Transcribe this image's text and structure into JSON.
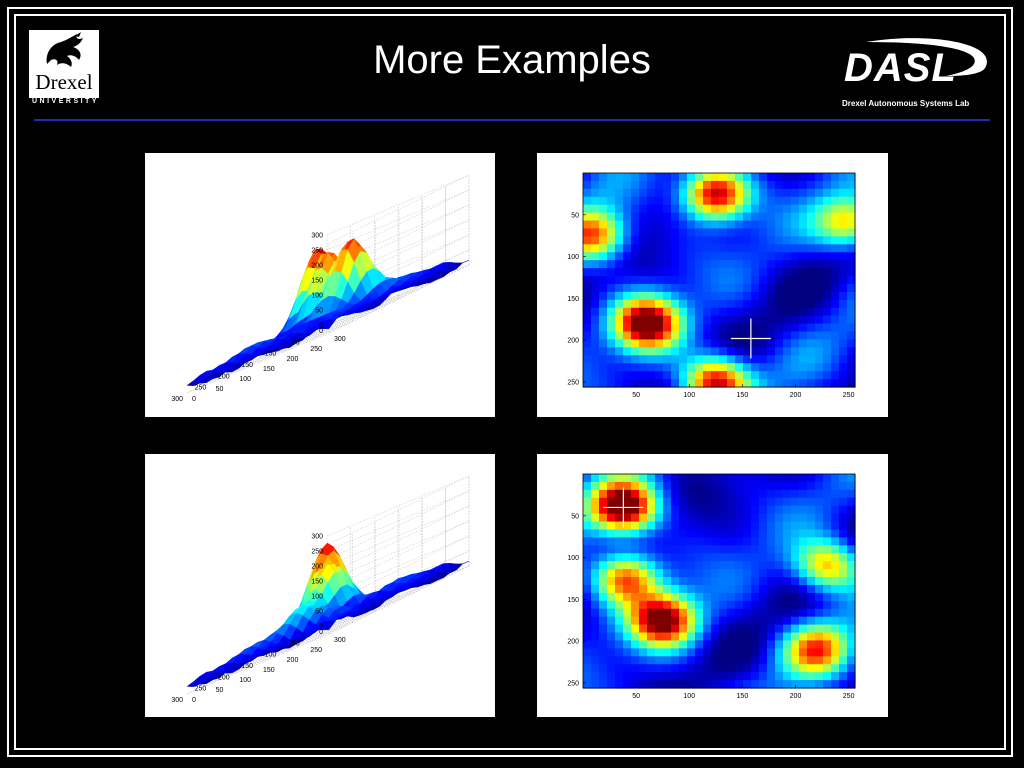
{
  "slide": {
    "title": "More Examples",
    "left_logo": {
      "wordmark": "Drexel",
      "subtitle": "UNIVERSITY",
      "icon": "dragon-icon"
    },
    "right_logo": {
      "wordmark": "DASL",
      "subtitle": "Drexel Autonomous Systems Lab",
      "icon": "orbit-swoosh-icon"
    },
    "rule_color": "#1a2db8"
  },
  "colormap": "jet",
  "chart_data": [
    {
      "type": "surface",
      "position_label": "top-left",
      "z_ticks": [
        "0",
        "50",
        "100",
        "150",
        "200",
        "250",
        "300"
      ],
      "x_ticks": [
        "0",
        "50",
        "100",
        "150",
        "200",
        "250",
        "300"
      ],
      "y_ticks": [
        "0",
        "50",
        "100",
        "150",
        "200",
        "250",
        "300"
      ],
      "zlim": [
        0,
        300
      ],
      "grid": true,
      "peaks": [
        {
          "x": 60,
          "y": 40,
          "z": 290
        },
        {
          "x": 150,
          "y": 200,
          "z": 260
        },
        {
          "x": 120,
          "y": 120,
          "z": 240
        }
      ]
    },
    {
      "type": "heatmap",
      "position_label": "top-right",
      "x_ticks": [
        "50",
        "100",
        "150",
        "200",
        "250"
      ],
      "y_ticks": [
        "50",
        "100",
        "150",
        "200",
        "250"
      ],
      "xlim": [
        0,
        256
      ],
      "ylim": [
        0,
        256
      ],
      "marker": {
        "shape": "crosshair",
        "x": 158,
        "y": 198
      },
      "hot_spots": [
        {
          "x": 60,
          "y": 180,
          "intensity": 0.95
        },
        {
          "x": 125,
          "y": 25,
          "intensity": 0.9
        },
        {
          "x": 125,
          "y": 250,
          "intensity": 0.85
        },
        {
          "x": 10,
          "y": 75,
          "intensity": 0.7
        },
        {
          "x": 250,
          "y": 60,
          "intensity": 0.6
        }
      ]
    },
    {
      "type": "surface",
      "position_label": "bottom-left",
      "z_ticks": [
        "0",
        "50",
        "100",
        "150",
        "200",
        "250",
        "300"
      ],
      "x_ticks": [
        "0",
        "50",
        "100",
        "150",
        "200",
        "250",
        "300"
      ],
      "y_ticks": [
        "0",
        "50",
        "100",
        "150",
        "200",
        "250",
        "300"
      ],
      "zlim": [
        0,
        300
      ],
      "grid": true,
      "peaks": [
        {
          "x": 40,
          "y": 40,
          "z": 300
        },
        {
          "x": 100,
          "y": 100,
          "z": 220
        },
        {
          "x": 180,
          "y": 120,
          "z": 150
        }
      ]
    },
    {
      "type": "heatmap",
      "position_label": "bottom-right",
      "x_ticks": [
        "50",
        "100",
        "150",
        "200",
        "250"
      ],
      "y_ticks": [
        "50",
        "100",
        "150",
        "200",
        "250"
      ],
      "xlim": [
        0,
        256
      ],
      "ylim": [
        0,
        256
      ],
      "marker": {
        "shape": "crosshair",
        "x": 38,
        "y": 40
      },
      "hot_spots": [
        {
          "x": 38,
          "y": 40,
          "intensity": 1.0
        },
        {
          "x": 75,
          "y": 175,
          "intensity": 0.9
        },
        {
          "x": 40,
          "y": 125,
          "intensity": 0.7
        },
        {
          "x": 230,
          "y": 110,
          "intensity": 0.65
        },
        {
          "x": 220,
          "y": 210,
          "intensity": 0.6
        }
      ]
    }
  ]
}
